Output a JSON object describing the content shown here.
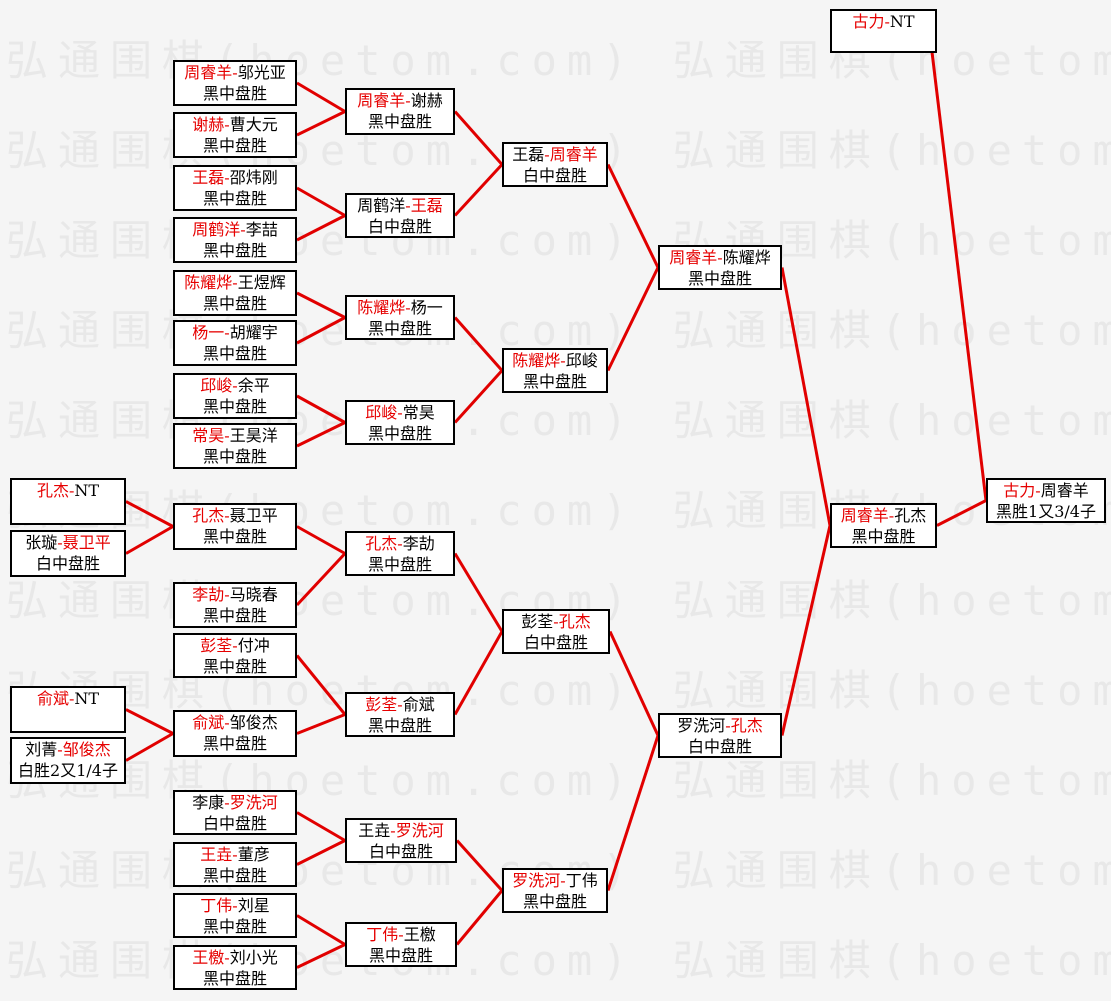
{
  "watermark": {
    "text": "弘通围棋(hoetom.com)"
  },
  "colors": {
    "page_bg": "#f5f5f5",
    "watermark": "#e8e8e8",
    "box_bg": "#ffffff",
    "box_border": "#000000",
    "text": "#000000",
    "winner_red": "#e60000",
    "line_red": "#e10000"
  },
  "bracket": {
    "matches": [
      {
        "id": "p1",
        "p1": "孔杰",
        "p2": "NT",
        "winner": 1,
        "result": ""
      },
      {
        "id": "p2",
        "p1": "张璇",
        "p2": "聂卫平",
        "winner": 2,
        "result": "白中盘胜"
      },
      {
        "id": "p3",
        "p1": "俞斌",
        "p2": "NT",
        "winner": 1,
        "result": ""
      },
      {
        "id": "p4",
        "p1": "刘菁",
        "p2": "邹俊杰",
        "winner": 2,
        "result": "白胜2又1/4子"
      },
      {
        "id": "m1",
        "p1": "周睿羊",
        "p2": "邬光亚",
        "winner": 1,
        "result": "黑中盘胜"
      },
      {
        "id": "m2",
        "p1": "谢赫",
        "p2": "曹大元",
        "winner": 1,
        "result": "黑中盘胜"
      },
      {
        "id": "m3",
        "p1": "王磊",
        "p2": "邵炜刚",
        "winner": 1,
        "result": "黑中盘胜"
      },
      {
        "id": "m4",
        "p1": "周鹤洋",
        "p2": "李喆",
        "winner": 1,
        "result": "黑中盘胜"
      },
      {
        "id": "m5",
        "p1": "陈耀烨",
        "p2": "王煜辉",
        "winner": 1,
        "result": "黑中盘胜"
      },
      {
        "id": "m6",
        "p1": "杨一",
        "p2": "胡耀宇",
        "winner": 1,
        "result": "黑中盘胜"
      },
      {
        "id": "m7",
        "p1": "邱峻",
        "p2": "余平",
        "winner": 1,
        "result": "黑中盘胜"
      },
      {
        "id": "m8",
        "p1": "常昊",
        "p2": "王昊洋",
        "winner": 1,
        "result": "黑中盘胜"
      },
      {
        "id": "m9",
        "p1": "孔杰",
        "p2": "聂卫平",
        "winner": 1,
        "result": "黑中盘胜"
      },
      {
        "id": "m10",
        "p1": "李劼",
        "p2": "马晓春",
        "winner": 1,
        "result": "黑中盘胜"
      },
      {
        "id": "m11",
        "p1": "彭荃",
        "p2": "付冲",
        "winner": 1,
        "result": "黑中盘胜"
      },
      {
        "id": "m12",
        "p1": "俞斌",
        "p2": "邹俊杰",
        "winner": 1,
        "result": "黑中盘胜"
      },
      {
        "id": "m13",
        "p1": "李康",
        "p2": "罗洗河",
        "winner": 2,
        "result": "白中盘胜"
      },
      {
        "id": "m14",
        "p1": "王垚",
        "p2": "董彦",
        "winner": 1,
        "result": "黑中盘胜"
      },
      {
        "id": "m15",
        "p1": "丁伟",
        "p2": "刘星",
        "winner": 1,
        "result": "黑中盘胜"
      },
      {
        "id": "m16",
        "p1": "王檄",
        "p2": "刘小光",
        "winner": 1,
        "result": "黑中盘胜"
      },
      {
        "id": "q1",
        "p1": "周睿羊",
        "p2": "谢赫",
        "winner": 1,
        "result": "黑中盘胜"
      },
      {
        "id": "q2",
        "p1": "周鹤洋",
        "p2": "王磊",
        "winner": 2,
        "result": "白中盘胜"
      },
      {
        "id": "q3",
        "p1": "陈耀烨",
        "p2": "杨一",
        "winner": 1,
        "result": "黑中盘胜"
      },
      {
        "id": "q4",
        "p1": "邱峻",
        "p2": "常昊",
        "winner": 1,
        "result": "黑中盘胜"
      },
      {
        "id": "q5",
        "p1": "孔杰",
        "p2": "李劼",
        "winner": 1,
        "result": "黑中盘胜"
      },
      {
        "id": "q6",
        "p1": "彭荃",
        "p2": "俞斌",
        "winner": 1,
        "result": "黑中盘胜"
      },
      {
        "id": "q7",
        "p1": "王垚",
        "p2": "罗洗河",
        "winner": 2,
        "result": "白中盘胜"
      },
      {
        "id": "q8",
        "p1": "丁伟",
        "p2": "王檄",
        "winner": 1,
        "result": "黑中盘胜"
      },
      {
        "id": "s1",
        "p1": "王磊",
        "p2": "周睿羊",
        "winner": 2,
        "result": "白中盘胜"
      },
      {
        "id": "s2",
        "p1": "陈耀烨",
        "p2": "邱峻",
        "winner": 1,
        "result": "黑中盘胜"
      },
      {
        "id": "s3",
        "p1": "彭荃",
        "p2": "孔杰",
        "winner": 2,
        "result": "白中盘胜"
      },
      {
        "id": "s4",
        "p1": "罗洗河",
        "p2": "丁伟",
        "winner": 1,
        "result": "黑中盘胜"
      },
      {
        "id": "f1",
        "p1": "周睿羊",
        "p2": "陈耀烨",
        "winner": 1,
        "result": "黑中盘胜"
      },
      {
        "id": "f2",
        "p1": "罗洗河",
        "p2": "孔杰",
        "winner": 2,
        "result": "白中盘胜"
      },
      {
        "id": "g1",
        "p1": "古力",
        "p2": "NT",
        "winner": 1,
        "result": ""
      },
      {
        "id": "g2",
        "p1": "周睿羊",
        "p2": "孔杰",
        "winner": 1,
        "result": "黑中盘胜"
      },
      {
        "id": "z1",
        "p1": "古力",
        "p2": "周睿羊",
        "winner": 1,
        "result": "黑胜1又3/4子"
      }
    ],
    "connections": [
      [
        "m1",
        "q1"
      ],
      [
        "m2",
        "q1"
      ],
      [
        "m3",
        "q2"
      ],
      [
        "m4",
        "q2"
      ],
      [
        "m5",
        "q3"
      ],
      [
        "m6",
        "q3"
      ],
      [
        "m7",
        "q4"
      ],
      [
        "m8",
        "q4"
      ],
      [
        "p1",
        "m9"
      ],
      [
        "p2",
        "m9"
      ],
      [
        "p3",
        "m12"
      ],
      [
        "p4",
        "m12"
      ],
      [
        "m9",
        "q5"
      ],
      [
        "m10",
        "q5"
      ],
      [
        "m11",
        "q6"
      ],
      [
        "m12",
        "q6"
      ],
      [
        "m13",
        "q7"
      ],
      [
        "m14",
        "q7"
      ],
      [
        "m15",
        "q8"
      ],
      [
        "m16",
        "q8"
      ],
      [
        "q1",
        "s1"
      ],
      [
        "q2",
        "s1"
      ],
      [
        "q3",
        "s2"
      ],
      [
        "q4",
        "s2"
      ],
      [
        "q5",
        "s3"
      ],
      [
        "q6",
        "s3"
      ],
      [
        "q7",
        "s4"
      ],
      [
        "q8",
        "s4"
      ],
      [
        "s1",
        "f1"
      ],
      [
        "s2",
        "f1"
      ],
      [
        "s3",
        "f2"
      ],
      [
        "s4",
        "f2"
      ],
      [
        "f1",
        "g2"
      ],
      [
        "f2",
        "g2"
      ],
      [
        "g1",
        "z1"
      ],
      [
        "g2",
        "z1"
      ]
    ]
  }
}
